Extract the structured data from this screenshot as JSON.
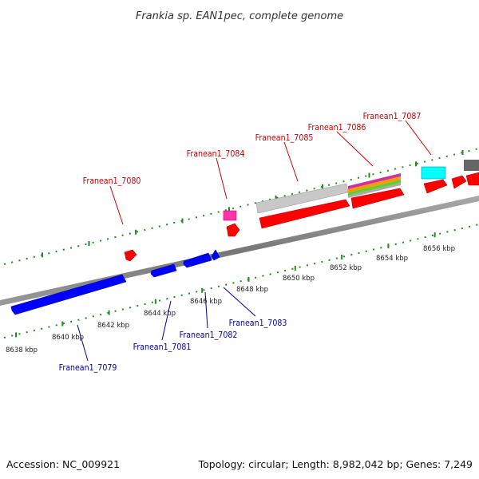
{
  "title": "Frankia sp. EAN1pec, complete genome",
  "footer": {
    "accession": "Accession: NC_009921",
    "summary": "Topology: circular; Length: 8,982,042 bp; Genes: 7,249"
  },
  "colors": {
    "forward_label": "#cc0000",
    "reverse_label": "#0000aa",
    "forward_gene": "#ff0000",
    "reverse_gene": "#0000ff",
    "tick": "#228b22",
    "backbone": "#888888"
  },
  "scale_labels": [
    "8638 kbp",
    "8640 kbp",
    "8642 kbp",
    "8644 kbp",
    "8646 kbp",
    "8648 kbp",
    "8650 kbp",
    "8652 kbp",
    "8654 kbp",
    "8656 kbp"
  ],
  "forward_labels": [
    "Franean1_7080",
    "Franean1_7084",
    "Franean1_7085",
    "Franean1_7086",
    "Franean1_7087"
  ],
  "reverse_labels": [
    "Franean1_7079",
    "Franean1_7081",
    "Franean1_7082",
    "Franean1_7083"
  ]
}
